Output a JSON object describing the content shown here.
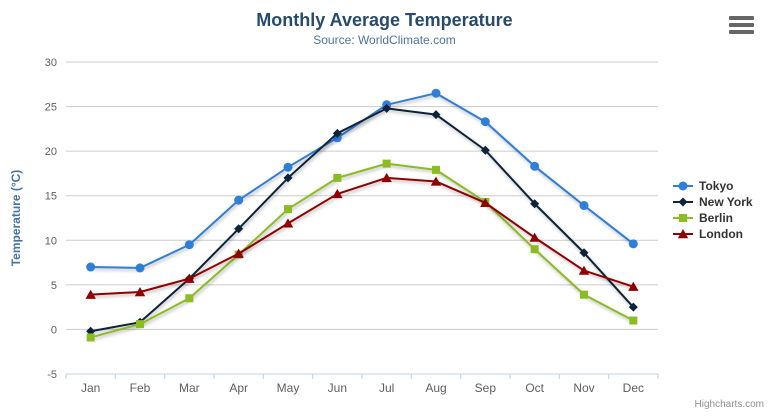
{
  "header": {
    "title": "Monthly Average Temperature",
    "subtitle": "Source: WorldClimate.com"
  },
  "export_menu": {
    "icon": "hamburger-menu-icon"
  },
  "credits": {
    "label": "Highcharts.com"
  },
  "chart_data": {
    "type": "line",
    "title": "Monthly Average Temperature",
    "subtitle": "Source: WorldClimate.com",
    "xlabel": "",
    "ylabel": "Temperature (°C)",
    "ylim": [
      -5,
      30
    ],
    "yticks": [
      -5,
      0,
      5,
      10,
      15,
      20,
      25,
      30
    ],
    "grid": true,
    "legend_position": "right",
    "categories": [
      "Jan",
      "Feb",
      "Mar",
      "Apr",
      "May",
      "Jun",
      "Jul",
      "Aug",
      "Sep",
      "Oct",
      "Nov",
      "Dec"
    ],
    "series": [
      {
        "name": "Tokyo",
        "color": "#2F7ED8",
        "marker": "circle",
        "values": [
          7.0,
          6.9,
          9.5,
          14.5,
          18.2,
          21.5,
          25.2,
          26.5,
          23.3,
          18.3,
          13.9,
          9.6
        ]
      },
      {
        "name": "New York",
        "color": "#0D233A",
        "marker": "diamond",
        "values": [
          -0.2,
          0.8,
          5.7,
          11.3,
          17.0,
          22.0,
          24.8,
          24.1,
          20.1,
          14.1,
          8.6,
          2.5
        ]
      },
      {
        "name": "Berlin",
        "color": "#8BBC21",
        "marker": "square",
        "values": [
          -0.9,
          0.6,
          3.5,
          8.4,
          13.5,
          17.0,
          18.6,
          17.9,
          14.3,
          9.0,
          3.9,
          1.0
        ]
      },
      {
        "name": "London",
        "color": "#910000",
        "marker": "triangle",
        "values": [
          3.9,
          4.2,
          5.7,
          8.5,
          11.9,
          15.2,
          17.0,
          16.6,
          14.2,
          10.3,
          6.6,
          4.8
        ]
      }
    ],
    "colors": {
      "title": "#274B6D",
      "subtitle": "#4D759E",
      "axis_title": "#4572A7",
      "tick_label": "#606060",
      "grid": "#CCCCCC",
      "axis_line": "#C0D0E0",
      "legend_text": "#333333",
      "credits": "#909090",
      "export_icon": "#666666",
      "background": "#FFFFFF"
    }
  }
}
